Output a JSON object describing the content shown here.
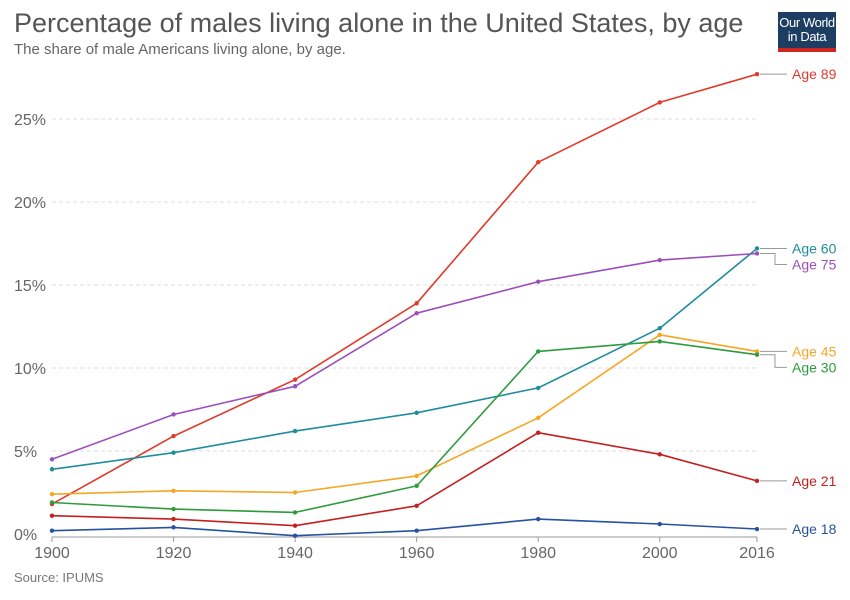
{
  "header": {
    "title": "Percentage of males living alone in the United States, by age",
    "subtitle": "The share of male Americans living alone, by age.",
    "logo_line1": "Our World",
    "logo_line2": "in Data"
  },
  "footer": {
    "source": "Source: IPUMS"
  },
  "chart_data": {
    "type": "line",
    "title": "Percentage of males living alone in the United States, by age",
    "subtitle": "The share of male Americans living alone, by age.",
    "x": [
      1900,
      1920,
      1940,
      1960,
      1980,
      2000,
      2016
    ],
    "x_ticks": [
      "1900",
      "1920",
      "1940",
      "1960",
      "1980",
      "2000",
      "2016"
    ],
    "y_ticks": [
      "0%",
      "5%",
      "10%",
      "15%",
      "20%",
      "25%"
    ],
    "y_tick_values": [
      0,
      5,
      10,
      15,
      20,
      25
    ],
    "ylim": [
      0,
      28
    ],
    "grid": true,
    "series": [
      {
        "name": "Age 89",
        "color": "#e03a2b",
        "values": [
          1.8,
          5.9,
          9.3,
          13.9,
          22.4,
          26.0,
          27.7
        ]
      },
      {
        "name": "Age 60",
        "color": "#1f8d9b",
        "values": [
          3.9,
          4.9,
          6.2,
          7.3,
          8.8,
          12.4,
          17.2
        ]
      },
      {
        "name": "Age 75",
        "color": "#9b4fbc",
        "values": [
          4.5,
          7.2,
          8.9,
          13.3,
          15.2,
          16.5,
          16.9
        ]
      },
      {
        "name": "Age 45",
        "color": "#f5a623",
        "values": [
          2.4,
          2.6,
          2.5,
          3.5,
          7.0,
          12.0,
          11.0
        ]
      },
      {
        "name": "Age 30",
        "color": "#2f9a3e",
        "values": [
          1.9,
          1.5,
          1.3,
          2.9,
          11.0,
          11.6,
          10.8
        ]
      },
      {
        "name": "Age 21",
        "color": "#c42020",
        "values": [
          1.1,
          0.9,
          0.5,
          1.7,
          6.1,
          4.8,
          3.2
        ]
      },
      {
        "name": "Age 18",
        "color": "#2752a0",
        "values": [
          0.2,
          0.4,
          -0.1,
          0.2,
          0.9,
          0.6,
          0.3
        ]
      }
    ]
  }
}
